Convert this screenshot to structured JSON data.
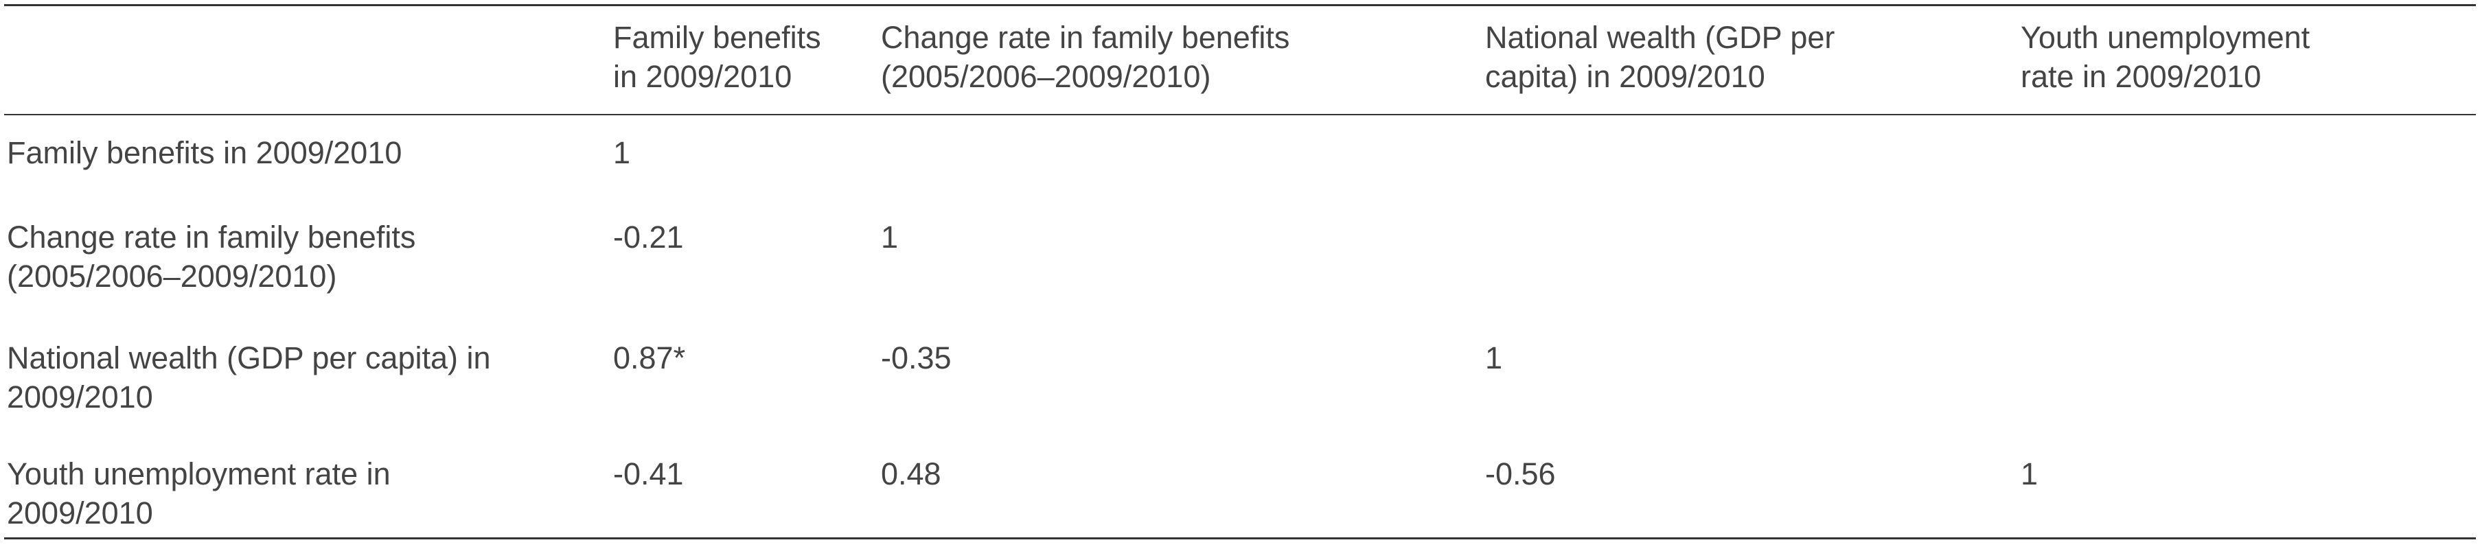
{
  "table": {
    "columns": [
      "",
      "Family benefits\nin 2009/2010",
      "Change rate in family benefits\n(2005/2006–2009/2010)",
      "National wealth (GDP per\ncapita) in 2009/2010",
      "Youth unemployment\nrate in 2009/2010"
    ],
    "rows": [
      {
        "label": "Family benefits in 2009/2010",
        "values": [
          "1",
          "",
          "",
          ""
        ]
      },
      {
        "label": "Change rate in family benefits\n(2005/2006–2009/2010)",
        "values": [
          "-0.21",
          "1",
          "",
          ""
        ]
      },
      {
        "label": "National wealth (GDP per capita) in\n2009/2010",
        "values": [
          "0.87*",
          "-0.35",
          "1",
          ""
        ]
      },
      {
        "label": "Youth unemployment rate in\n2009/2010",
        "values": [
          "-0.41",
          "0.48",
          "-0.56",
          "1"
        ]
      }
    ]
  }
}
